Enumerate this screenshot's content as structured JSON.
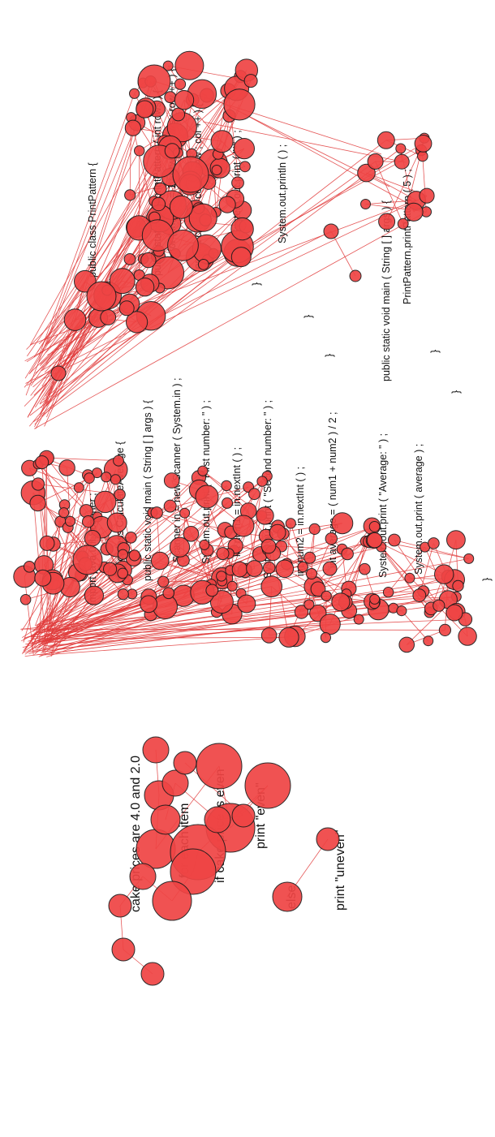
{
  "panels": [
    {
      "name": "print-pattern",
      "code_lines": [
        "public class PrintPattern {",
        "public static void printPattern ( int rows ) {",
        "for ( int row = 1 ; row <= rows ; row ++ ) {",
        "for ( int col = 1 ; col <= row ; col ++ ) {",
        "System.out.print ( \"*\" ) ;",
        "}",
        "System.out.println ( ) ;",
        "}",
        "}",
        "public static void main ( String [ ] args ) {",
        "PrintPattern.printPattern ( 5 ) ;",
        "}",
        "}"
      ]
    },
    {
      "name": "calculate-average",
      "code_lines": [
        "import java.util.Scanner ;",
        "public class CalculateAverage {",
        "public static void main ( String [ ] args ) {",
        "Scanner in = new Scanner ( System.in ) ;",
        "System.out.print ( \"First number: \" ) ;",
        "int num1 = in.nextInt ( ) ;",
        "System.out.print ( \"Second number: \" ) ;",
        "int num2 = in.nextInt ( ) ;",
        "int average = ( num1 + num2 ) / 2 ;",
        "System.out.print ( \"Average: \" ) ;",
        "System.out.print ( average ) ;",
        "}",
        "}"
      ]
    },
    {
      "name": "cake-pseudocode",
      "code_lines": [
        "cake prices are 4.0 and 2.0",
        "for each item",
        "if cake price is even",
        "print \"even\"",
        "else",
        "print \"uneven\""
      ]
    }
  ],
  "colors": {
    "fixation_fill": "#ef4444",
    "fixation_stroke": "#1a1a1a",
    "saccade_line": "#e03a3a"
  }
}
